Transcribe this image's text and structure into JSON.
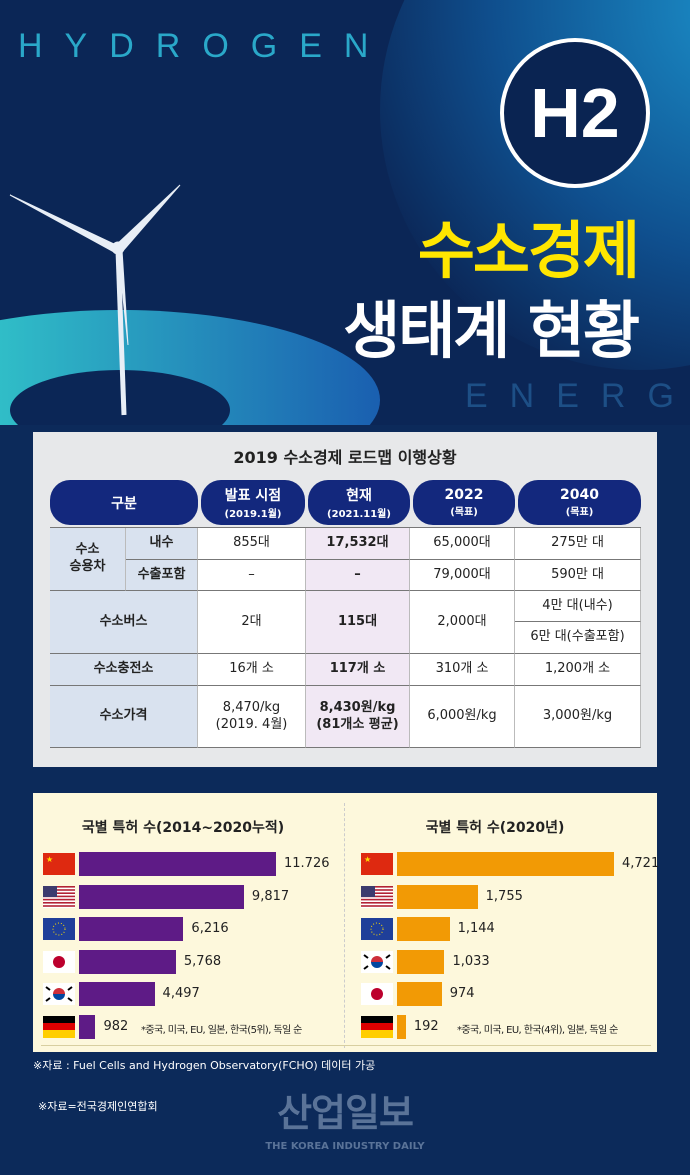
{
  "hero": {
    "top_word": "HYDROGEN",
    "bottom_word": "ENERGY",
    "badge": "H2",
    "title_line1": "수소경제",
    "title_line2": "생태계 현황",
    "colors": {
      "accent_yellow": "#ffe600",
      "navy": "#0c2a5a",
      "cyan": "#1ec8dc"
    }
  },
  "table": {
    "title": "2019 수소경제 로드맵 이행상황",
    "headers": [
      {
        "label": "구분"
      },
      {
        "label": "발표 시점",
        "sub": "(2019.1월)"
      },
      {
        "label": "현재",
        "sub": "(2021.11월)"
      },
      {
        "label": "2022",
        "sub": "(목표)"
      },
      {
        "label": "2040",
        "sub": "(목표)"
      }
    ],
    "car_group": "수소\n승용차",
    "rows": {
      "domestic": {
        "label": "내수",
        "values": [
          "855대",
          "17,532대",
          "65,000대",
          "275만 대"
        ]
      },
      "export": {
        "label": "수출포함",
        "values": [
          "–",
          "–",
          "79,000대",
          "590만 대"
        ]
      },
      "bus": {
        "label": "수소버스",
        "values": [
          "2대",
          "115대",
          "2,000대",
          "4만 대(내수)",
          "6만 대(수출포함)"
        ]
      },
      "station": {
        "label": "수소충전소",
        "values": [
          "16개 소",
          "117개 소",
          "310개 소",
          "1,200개 소"
        ]
      },
      "price": {
        "label": "수소가격",
        "values": [
          "8,470/kg\n(2019. 4월)",
          "8,430원/kg\n(81개소 평균)",
          "6,000원/kg",
          "3,000원/kg"
        ]
      }
    }
  },
  "chart_data": [
    {
      "type": "bar",
      "orientation": "horizontal",
      "title": "국별 특허 수(2014~2020누적)",
      "categories": [
        "CN",
        "US",
        "EU",
        "JP",
        "KR",
        "DE"
      ],
      "values": [
        11726,
        9817,
        6216,
        5768,
        4497,
        982
      ],
      "labels": [
        "11.726",
        "9,817",
        "6,216",
        "5,768",
        "4,497",
        "982"
      ],
      "color": "#5e1b86",
      "note": "*중국, 미국, EU, 일본, 한국(5위), 독일 순"
    },
    {
      "type": "bar",
      "orientation": "horizontal",
      "title": "국별 특허 수(2020년)",
      "categories": [
        "CN",
        "US",
        "EU",
        "KR",
        "JP",
        "DE"
      ],
      "values": [
        4721,
        1755,
        1144,
        1033,
        974,
        192
      ],
      "labels": [
        "4,721",
        "1,755",
        "1,144",
        "1,033",
        "974",
        "192"
      ],
      "color": "#f29a05",
      "note": "*중국, 미국, EU, 한국(4위), 일본, 독일 순"
    }
  ],
  "footer": {
    "source1": "※자료 : Fuel Cells and Hydrogen Observatory(FCHO) 데이터 가공",
    "source2": "※자료=전국경제인연합회",
    "logo": "산업일보",
    "logo_sub": "THE KOREA INDUSTRY DAILY"
  }
}
